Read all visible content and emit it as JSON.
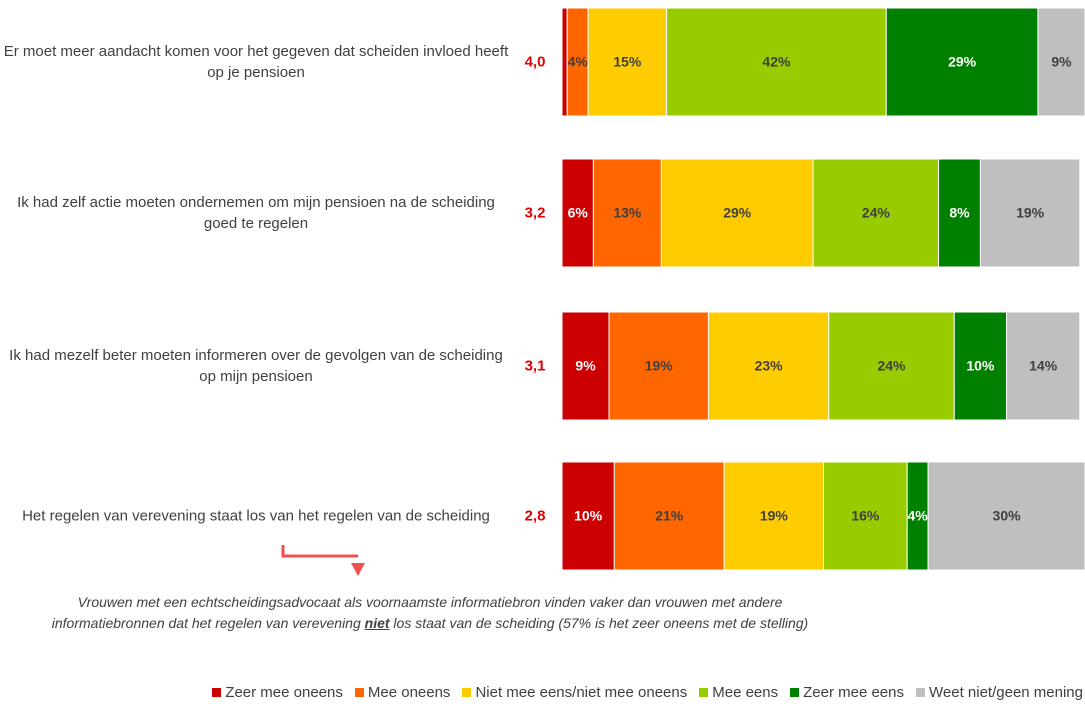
{
  "chart_data": {
    "type": "bar",
    "orientation": "horizontal",
    "stacked": true,
    "categories": [
      "Er moet meer aandacht komen voor het gegeven dat scheiden invloed heeft op je pensioen",
      "Ik had zelf actie moeten ondernemen om mijn pensioen na de scheiding goed te regelen",
      "Ik had mezelf beter moeten informeren over de gevolgen van de scheiding op mijn pensioen",
      "Het regelen van verevening staat los van het regelen van de scheiding"
    ],
    "mean_scores": [
      {
        "value": 4.0,
        "label": "4,0"
      },
      {
        "value": 3.2,
        "label": "3,2"
      },
      {
        "value": 3.1,
        "label": "3,1"
      },
      {
        "value": 2.8,
        "label": "2,8"
      }
    ],
    "xlim": [
      0,
      100
    ],
    "series": [
      {
        "name": "Zeer mee oneens",
        "color": "#cc0000",
        "values": [
          1,
          6,
          9,
          10
        ],
        "value_labels": [
          null,
          "6%",
          "9%",
          "10%"
        ]
      },
      {
        "name": "Mee oneens",
        "color": "#ff6600",
        "values": [
          4,
          13,
          19,
          21
        ],
        "value_labels": [
          "4%",
          "13%",
          "19%",
          "21%"
        ]
      },
      {
        "name": "Niet mee eens/niet mee oneens",
        "color": "#ffcc00",
        "values": [
          15,
          29,
          23,
          19
        ],
        "value_labels": [
          "15%",
          "29%",
          "23%",
          "19%"
        ]
      },
      {
        "name": "Mee eens",
        "color": "#99cc00",
        "values": [
          42,
          24,
          24,
          16
        ],
        "value_labels": [
          "42%",
          "24%",
          "24%",
          "16%"
        ]
      },
      {
        "name": "Zeer mee eens",
        "color": "#008000",
        "values": [
          29,
          8,
          10,
          4
        ],
        "value_labels": [
          "29%",
          "8%",
          "10%",
          "4%"
        ]
      },
      {
        "name": "Weet niet/geen mening",
        "color": "#bfbfbf",
        "values": [
          9,
          19,
          14,
          30
        ],
        "value_labels": [
          "9%",
          "19%",
          "14%",
          "30%"
        ]
      }
    ],
    "legend": "bottom-right"
  },
  "note": {
    "before": "Vrouwen met een echtscheidingsadvocaat als voornaamste informatiebron vinden vaker dan vrouwen met andere informatiebronnen dat het regelen van verevening ",
    "emphasis": "niet",
    "after": " los staat van de scheiding (57% is het zeer oneens met de stelling)"
  }
}
